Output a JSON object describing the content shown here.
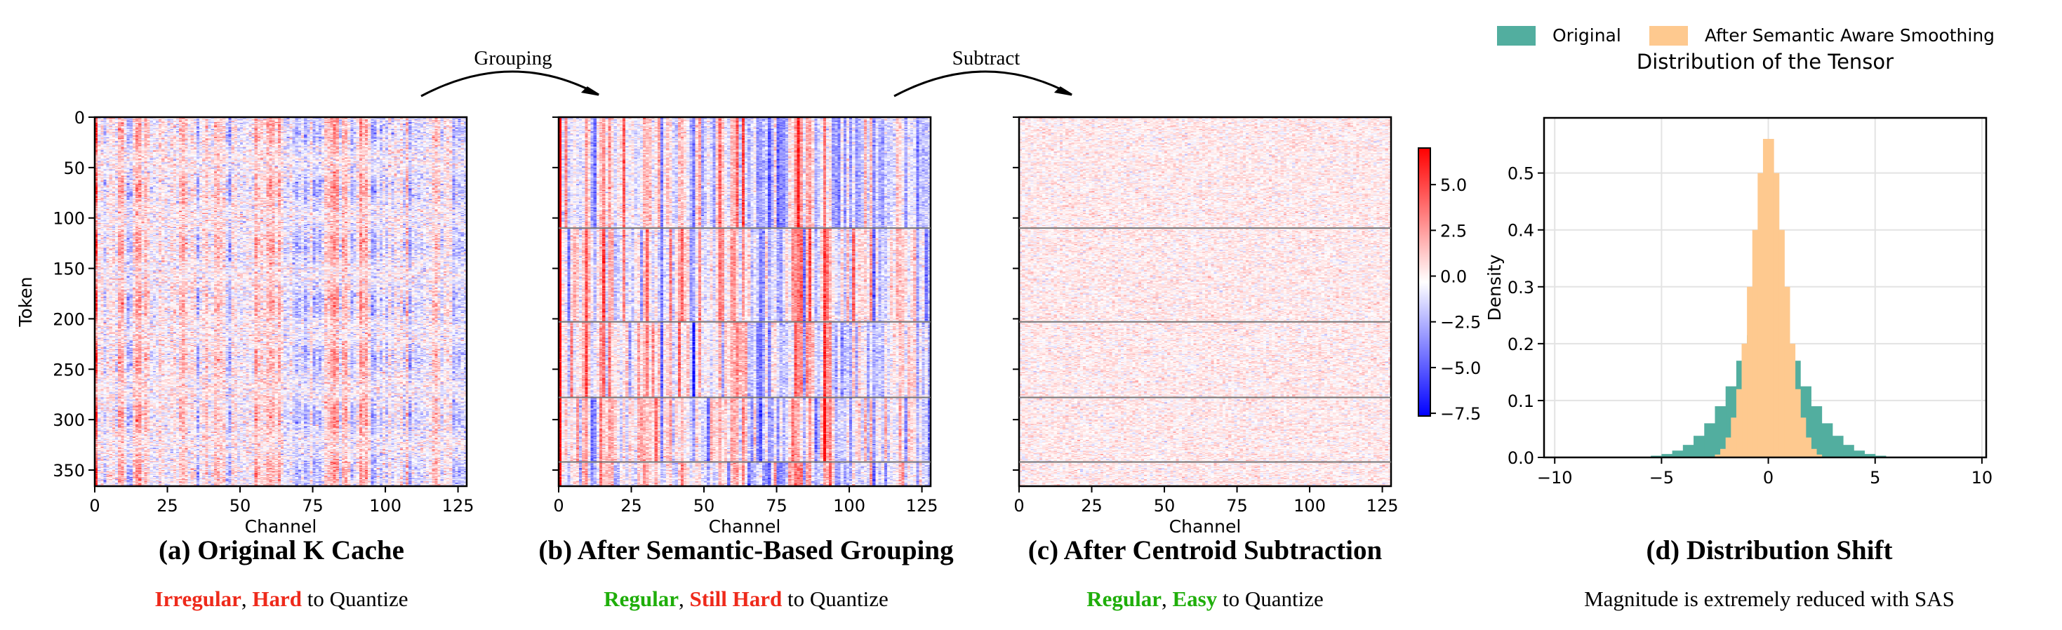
{
  "arrows": [
    {
      "label": "Grouping"
    },
    {
      "label": "Subtract"
    }
  ],
  "legend": [
    {
      "label": "Original",
      "color": "#52ae9f"
    },
    {
      "label": "After Semantic Aware Smoothing",
      "color": "#fec98f"
    }
  ],
  "colors": {
    "red": "#ee2a1b",
    "green": "#1fae0a",
    "text": "#000000"
  },
  "captions": [
    {
      "title": "(a) Original K Cache",
      "parts": [
        {
          "text": "Irregular",
          "color": "red",
          "bold": true
        },
        {
          "text": ", ",
          "color": "text",
          "bold": false
        },
        {
          "text": "Hard",
          "color": "red",
          "bold": true
        },
        {
          "text": " to Quantize",
          "color": "text",
          "bold": false
        }
      ]
    },
    {
      "title": "(b) After Semantic-Based Grouping",
      "parts": [
        {
          "text": "Regular",
          "color": "green",
          "bold": true
        },
        {
          "text": ", ",
          "color": "text",
          "bold": false
        },
        {
          "text": "Still Hard",
          "color": "red",
          "bold": true
        },
        {
          "text": " to Quantize",
          "color": "text",
          "bold": false
        }
      ]
    },
    {
      "title": "(c) After Centroid Subtraction",
      "parts": [
        {
          "text": "Regular",
          "color": "green",
          "bold": true
        },
        {
          "text": ", ",
          "color": "text",
          "bold": false
        },
        {
          "text": "Easy",
          "color": "green",
          "bold": true
        },
        {
          "text": " to Quantize",
          "color": "text",
          "bold": false
        }
      ]
    },
    {
      "title": "(d) Distribution Shift",
      "parts": [
        {
          "text": "Magnitude is extremely reduced with SAS",
          "color": "text",
          "bold": false
        }
      ]
    }
  ],
  "chart_data": [
    {
      "type": "heatmap",
      "panel": "a",
      "xlabel": "Channel",
      "ylabel": "Token",
      "xlim": [
        0,
        128
      ],
      "ylim": [
        0,
        366
      ],
      "y_inverted": true,
      "xticks": [
        "0",
        "25",
        "50",
        "75",
        "100",
        "125"
      ],
      "yticks": [
        "0",
        "50",
        "100",
        "150",
        "200",
        "250",
        "300",
        "350"
      ],
      "show_ytick_labels": true,
      "group_boundaries": [],
      "colormap": "bwr",
      "amplitude": "high"
    },
    {
      "type": "heatmap",
      "panel": "b",
      "xlabel": "Channel",
      "ylabel": "",
      "xlim": [
        0,
        128
      ],
      "ylim": [
        0,
        366
      ],
      "y_inverted": true,
      "xticks": [
        "0",
        "25",
        "50",
        "75",
        "100",
        "125"
      ],
      "yticks": [
        "0",
        "50",
        "100",
        "150",
        "200",
        "250",
        "300",
        "350"
      ],
      "show_ytick_labels": false,
      "group_boundaries": [
        110,
        203,
        278,
        342
      ],
      "colormap": "bwr",
      "amplitude": "high"
    },
    {
      "type": "heatmap",
      "panel": "c",
      "xlabel": "Channel",
      "ylabel": "",
      "xlim": [
        0,
        128
      ],
      "ylim": [
        0,
        366
      ],
      "y_inverted": true,
      "xticks": [
        "0",
        "25",
        "50",
        "75",
        "100",
        "125"
      ],
      "yticks": [
        "0",
        "50",
        "100",
        "150",
        "200",
        "250",
        "300",
        "350"
      ],
      "show_ytick_labels": false,
      "group_boundaries": [
        110,
        203,
        278,
        342
      ],
      "colormap": "bwr",
      "amplitude": "low"
    },
    {
      "type": "colorbar",
      "range": [
        -7.65,
        7.0
      ],
      "ticks": [
        5.0,
        2.5,
        0.0,
        -2.5,
        -5.0,
        -7.5
      ],
      "tick_labels": [
        "5.0",
        "2.5",
        "0.0",
        "−2.5",
        "−5.0",
        "−7.5"
      ],
      "colormap": "bwr"
    },
    {
      "type": "bar",
      "subtype": "histogram",
      "title": "Distribution of the Tensor",
      "xlabel": "",
      "ylabel": "Density",
      "xlim": [
        -10.5,
        10.2
      ],
      "ylim": [
        0,
        0.597
      ],
      "grid": true,
      "xticks": [
        -10,
        -5,
        0,
        5,
        10
      ],
      "xtick_labels": [
        "−10",
        "−5",
        "0",
        "5",
        "10"
      ],
      "yticks": [
        0.0,
        0.1,
        0.2,
        0.3,
        0.4,
        0.5
      ],
      "ytick_labels": [
        "0.0",
        "0.1",
        "0.2",
        "0.3",
        "0.4",
        "0.5"
      ],
      "legend_position": "top (above plot)",
      "series": [
        {
          "name": "Original",
          "color": "#52ae9f",
          "bin_width": 0.5,
          "symmetric_about": 0,
          "half_values": [
            0.255,
            0.215,
            0.17,
            0.125,
            0.09,
            0.06,
            0.038,
            0.022,
            0.012,
            0.006,
            0.003,
            0.001
          ]
        },
        {
          "name": "After Semantic Aware Smoothing",
          "color": "#fec98f",
          "bin_width": 0.25,
          "symmetric_about": 0,
          "half_values": [
            0.56,
            0.5,
            0.4,
            0.3,
            0.2,
            0.12,
            0.07,
            0.035,
            0.015,
            0.005
          ]
        }
      ]
    }
  ]
}
